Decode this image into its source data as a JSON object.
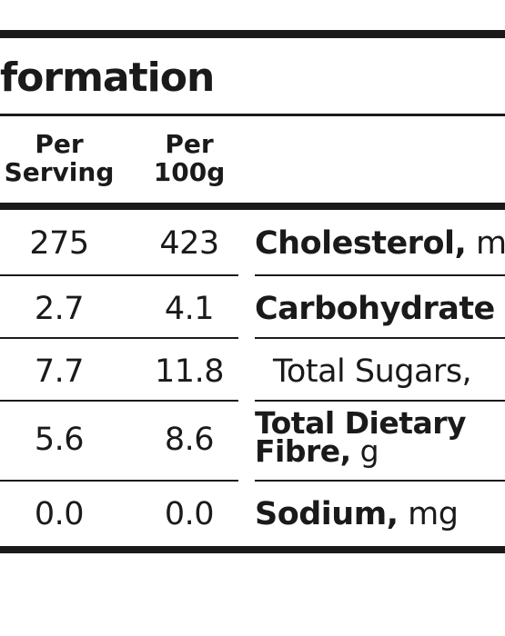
{
  "title": "formation",
  "columns": {
    "per_serving": [
      "Per",
      "Serving"
    ],
    "per_100g": [
      "Per",
      "100g"
    ]
  },
  "rows": [
    {
      "serving": "275",
      "per100": "423",
      "name": "Cholesterol,",
      "unit": "m"
    },
    {
      "serving": "2.7",
      "per100": "4.1",
      "name": "Carbohydrate",
      "unit": ""
    },
    {
      "serving": "7.7",
      "per100": "11.8",
      "name": "",
      "unit": "Total Sugars,"
    },
    {
      "serving": "5.6",
      "per100": "8.6",
      "name": "Total Dietary",
      "name2": "Fibre,",
      "unit": "g"
    },
    {
      "serving": "0.0",
      "per100": "0.0",
      "name": "Sodium,",
      "unit": "mg"
    }
  ]
}
